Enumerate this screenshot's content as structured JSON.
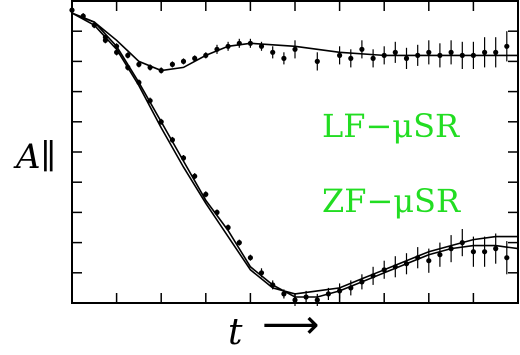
{
  "chart_data": {
    "type": "scatter",
    "title": "",
    "xlabel": "t",
    "ylabel": "A∥",
    "x_arrow": "⟶",
    "xlim": [
      0,
      10
    ],
    "ylim": [
      0,
      1
    ],
    "grid": false,
    "tick_labels": false,
    "x_minor_ticks": [
      1,
      2,
      3,
      4,
      5,
      6,
      7,
      8,
      9
    ],
    "y_minor_ticks": [
      0.1,
      0.2,
      0.3,
      0.4,
      0.5,
      0.6,
      0.7,
      0.8,
      0.9
    ],
    "annotations": [
      {
        "text": "LF−μSR",
        "color": "#22dd22"
      },
      {
        "text": "ZF−μSR",
        "color": "#22dd22"
      }
    ],
    "series": [
      {
        "curve": {
          "x": [
            0,
            0.5,
            1,
            1.5,
            2,
            2.5,
            3,
            3.5,
            4,
            5,
            6,
            7,
            8,
            9,
            10
          ],
          "y": [
            0.96,
            0.93,
            0.87,
            0.8,
            0.77,
            0.78,
            0.82,
            0.85,
            0.86,
            0.85,
            0.83,
            0.82,
            0.82,
            0.82,
            0.82
          ]
        },
        "points": {
          "x": [
            0,
            0.25,
            0.5,
            0.75,
            1,
            1.25,
            1.5,
            1.75,
            2,
            2.25,
            2.5,
            2.75,
            3,
            3.25,
            3.5,
            3.75,
            4,
            4.25,
            4.5,
            4.75,
            5,
            5.5,
            6,
            6.25,
            6.5,
            6.75,
            7,
            7.25,
            7.5,
            7.75,
            8,
            8.25,
            8.5,
            8.75,
            9,
            9.25,
            9.5,
            9.75
          ],
          "y": [
            0.97,
            0.95,
            0.92,
            0.88,
            0.85,
            0.82,
            0.79,
            0.78,
            0.77,
            0.79,
            0.8,
            0.81,
            0.82,
            0.84,
            0.85,
            0.86,
            0.86,
            0.85,
            0.83,
            0.81,
            0.84,
            0.8,
            0.82,
            0.81,
            0.84,
            0.81,
            0.82,
            0.83,
            0.81,
            0.82,
            0.83,
            0.82,
            0.83,
            0.82,
            0.82,
            0.83,
            0.83,
            0.85
          ],
          "err": [
            0.01,
            0.01,
            0.01,
            0.01,
            0.01,
            0.01,
            0.01,
            0.01,
            0.01,
            0.01,
            0.01,
            0.01,
            0.01,
            0.015,
            0.015,
            0.015,
            0.015,
            0.015,
            0.02,
            0.02,
            0.03,
            0.03,
            0.03,
            0.03,
            0.03,
            0.03,
            0.03,
            0.035,
            0.035,
            0.035,
            0.04,
            0.04,
            0.04,
            0.045,
            0.045,
            0.05,
            0.05,
            0.05
          ]
        }
      },
      {
        "curve": {
          "x": [
            0,
            0.5,
            1,
            1.5,
            2,
            2.5,
            3,
            3.5,
            4,
            4.5,
            5,
            5.5,
            6,
            6.5,
            7,
            7.5,
            8,
            8.5,
            9,
            9.5,
            10
          ],
          "y": [
            0.96,
            0.93,
            0.85,
            0.73,
            0.6,
            0.47,
            0.34,
            0.24,
            0.12,
            0.06,
            0.02,
            0.02,
            0.04,
            0.07,
            0.1,
            0.13,
            0.16,
            0.18,
            0.19,
            0.19,
            0.18
          ]
        },
        "curve2": {
          "x": [
            0,
            0.5,
            1,
            1.5,
            2,
            2.5,
            3,
            3.5,
            4,
            4.5,
            5,
            5.5,
            6,
            6.5,
            7,
            7.5,
            8,
            8.5,
            9,
            9.5,
            10
          ],
          "y": [
            0.96,
            0.92,
            0.84,
            0.72,
            0.58,
            0.45,
            0.33,
            0.22,
            0.11,
            0.05,
            0.03,
            0.04,
            0.05,
            0.08,
            0.11,
            0.14,
            0.17,
            0.19,
            0.21,
            0.22,
            0.22
          ]
        },
        "points": {
          "x": [
            0.75,
            1,
            1.25,
            1.5,
            1.75,
            2,
            2.25,
            2.5,
            2.75,
            3,
            3.25,
            3.5,
            3.75,
            4,
            4.25,
            4.5,
            4.75,
            5,
            5.25,
            5.5,
            5.75,
            6,
            6.25,
            6.5,
            6.75,
            7,
            7.25,
            7.5,
            7.75,
            8,
            8.25,
            8.5,
            8.75,
            9,
            9.25,
            9.5,
            9.75
          ],
          "y": [
            0.87,
            0.83,
            0.78,
            0.73,
            0.67,
            0.6,
            0.54,
            0.48,
            0.42,
            0.36,
            0.3,
            0.25,
            0.2,
            0.15,
            0.1,
            0.06,
            0.03,
            0.01,
            0.02,
            0.01,
            0.03,
            0.04,
            0.05,
            0.07,
            0.09,
            0.11,
            0.12,
            0.13,
            0.15,
            0.14,
            0.16,
            0.18,
            0.2,
            0.17,
            0.17,
            0.18,
            0.15
          ],
          "err": [
            0.01,
            0.01,
            0.01,
            0.01,
            0.01,
            0.01,
            0.01,
            0.01,
            0.01,
            0.01,
            0.01,
            0.01,
            0.01,
            0.01,
            0.015,
            0.015,
            0.015,
            0.02,
            0.02,
            0.02,
            0.02,
            0.025,
            0.025,
            0.025,
            0.03,
            0.03,
            0.035,
            0.035,
            0.035,
            0.04,
            0.04,
            0.045,
            0.045,
            0.05,
            0.05,
            0.05,
            0.055
          ]
        }
      }
    ]
  }
}
